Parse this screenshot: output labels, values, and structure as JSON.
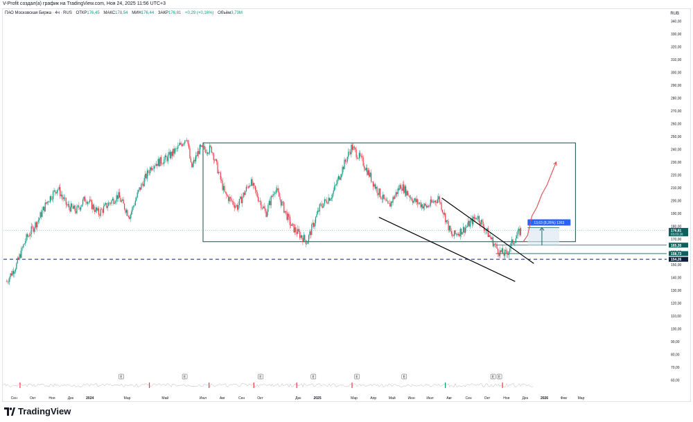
{
  "header": {
    "credit": "V-Profit создал(а) график на TradingView.com, Ноя 24, 2025 11:56 UTC+3",
    "symbol": "ПАО Московская Биржа · 4ч · RUS",
    "open_label": "ОТКР",
    "open": "176,45",
    "high_label": "МАКС",
    "high": "178,54",
    "low_label": "МИН",
    "low": "176,44",
    "close_label": "ЗАКР",
    "close": "176,81",
    "change": "+0,29 (+0,16%)",
    "volume_label": "Объём",
    "volume": "3,73M",
    "currency": "RUB"
  },
  "footer": {
    "brand": "TradingView"
  },
  "colors": {
    "up": "#089981",
    "down": "#f23645",
    "rect": "#1a4a4a",
    "channel": "#000000",
    "arrow_red": "#e5484d",
    "dashed": "#1e3a8a",
    "label_dark": "#0b1f3a",
    "label_green": "#0f5f5f"
  },
  "chart_data": {
    "type": "candlestick",
    "y_axis_ticks": [
      "60,00",
      "70,00",
      "80,00",
      "90,00",
      "100,00",
      "110,00",
      "120,00",
      "130,00",
      "140,00",
      "150,00",
      "160,00",
      "170,00",
      "180,00",
      "190,00",
      "200,00",
      "210,00",
      "220,00",
      "230,00",
      "240,00",
      "250,00",
      "260,00",
      "270,00",
      "280,00",
      "290,00",
      "300,00",
      "310,00",
      "320,00",
      "330,00",
      "340,00"
    ],
    "ylim": [
      55,
      345
    ],
    "x_axis_ticks": [
      "Сен",
      "Окт",
      "Ноя",
      "Дек",
      "2024",
      "Мар",
      "Май",
      "Июл",
      "Авг",
      "Сен",
      "Окт",
      "Дек",
      "2025",
      "Мар",
      "Апр",
      "Май",
      "Июн",
      "Июл",
      "Авг",
      "Сен",
      "Окт",
      "Ноя",
      "Дек",
      "2026",
      "Фев",
      "Мар"
    ],
    "price_series": [
      {
        "t": "2023-08-20",
        "p": 137
      },
      {
        "t": "2023-09-05",
        "p": 150
      },
      {
        "t": "2023-09-20",
        "p": 170
      },
      {
        "t": "2023-10-10",
        "p": 185
      },
      {
        "t": "2023-10-25",
        "p": 200
      },
      {
        "t": "2023-11-10",
        "p": 210
      },
      {
        "t": "2023-11-25",
        "p": 196
      },
      {
        "t": "2023-12-10",
        "p": 192
      },
      {
        "t": "2023-12-25",
        "p": 202
      },
      {
        "t": "2024-01-15",
        "p": 190
      },
      {
        "t": "2024-02-01",
        "p": 198
      },
      {
        "t": "2024-02-15",
        "p": 204
      },
      {
        "t": "2024-03-05",
        "p": 188
      },
      {
        "t": "2024-03-20",
        "p": 208
      },
      {
        "t": "2024-04-10",
        "p": 228
      },
      {
        "t": "2024-05-01",
        "p": 232
      },
      {
        "t": "2024-05-20",
        "p": 240
      },
      {
        "t": "2024-06-05",
        "p": 250
      },
      {
        "t": "2024-06-12",
        "p": 225
      },
      {
        "t": "2024-06-25",
        "p": 240
      },
      {
        "t": "2024-07-15",
        "p": 240
      },
      {
        "t": "2024-08-05",
        "p": 205
      },
      {
        "t": "2024-08-25",
        "p": 195
      },
      {
        "t": "2024-09-15",
        "p": 215
      },
      {
        "t": "2024-10-10",
        "p": 190
      },
      {
        "t": "2024-10-25",
        "p": 210
      },
      {
        "t": "2024-11-20",
        "p": 180
      },
      {
        "t": "2024-12-15",
        "p": 168
      },
      {
        "t": "2025-01-05",
        "p": 195
      },
      {
        "t": "2025-01-25",
        "p": 205
      },
      {
        "t": "2025-02-10",
        "p": 225
      },
      {
        "t": "2025-02-25",
        "p": 242
      },
      {
        "t": "2025-03-15",
        "p": 230
      },
      {
        "t": "2025-04-05",
        "p": 210
      },
      {
        "t": "2025-04-25",
        "p": 195
      },
      {
        "t": "2025-05-15",
        "p": 212
      },
      {
        "t": "2025-06-05",
        "p": 200
      },
      {
        "t": "2025-06-25",
        "p": 195
      },
      {
        "t": "2025-07-15",
        "p": 202
      },
      {
        "t": "2025-08-05",
        "p": 172
      },
      {
        "t": "2025-08-25",
        "p": 178
      },
      {
        "t": "2025-09-15",
        "p": 188
      },
      {
        "t": "2025-10-05",
        "p": 172
      },
      {
        "t": "2025-10-20",
        "p": 160
      },
      {
        "t": "2025-11-01",
        "p": 158
      },
      {
        "t": "2025-11-10",
        "p": 167
      },
      {
        "t": "2025-11-24",
        "p": 176.81
      }
    ],
    "price_labels": [
      {
        "text": "176,81",
        "sub": "03:03:28",
        "value": 176.81,
        "style": "green"
      },
      {
        "text": "165,30",
        "value": 165.3,
        "style": "green"
      },
      {
        "text": "158,73",
        "value": 158.73,
        "style": "green"
      },
      {
        "text": "154,26",
        "value": 154.26,
        "style": "dark"
      }
    ],
    "measure_label": "13,63 (8,26%) 1363",
    "annotations": {
      "rectangle": {
        "t_start": "2024-07-01",
        "t_end": "2026-02-20",
        "y_top": 245,
        "y_bottom": 168
      },
      "channel_upper": [
        {
          "t": "2025-07-20",
          "p": 202
        },
        {
          "t": "2025-12-15",
          "p": 151
        }
      ],
      "channel_lower": [
        {
          "t": "2025-04-10",
          "p": 187
        },
        {
          "t": "2025-11-15",
          "p": 137
        }
      ],
      "dashed_line_value": 154.26,
      "green_arrow": {
        "t": "2025-12-28",
        "from": 165.3,
        "to": 178.93
      },
      "red_arrow": [
        {
          "t": "2025-11-28",
          "p": 168
        },
        {
          "t": "2025-12-05",
          "p": 173
        },
        {
          "t": "2025-12-12",
          "p": 188
        },
        {
          "t": "2025-12-20",
          "p": 195
        },
        {
          "t": "2025-12-28",
          "p": 205
        },
        {
          "t": "2026-01-05",
          "p": 212
        },
        {
          "t": "2026-01-20",
          "p": 230
        }
      ]
    },
    "title": "",
    "xlabel": "",
    "ylabel": "",
    "grid": false
  },
  "event_markers": [
    "E",
    "E",
    "E",
    "E",
    "E",
    "E",
    "E",
    "E"
  ]
}
